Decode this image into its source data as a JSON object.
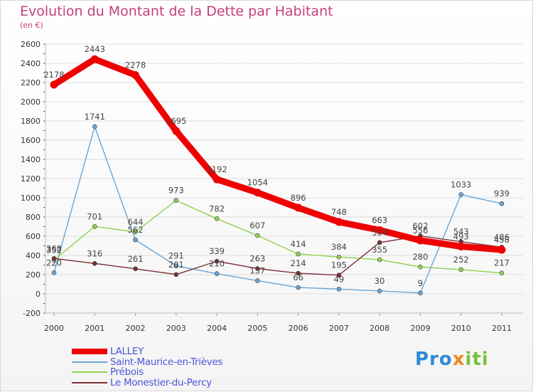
{
  "header": {
    "title": "Evolution du Montant de la Dette par Habitant",
    "subtitle": "(en €)"
  },
  "logo": {
    "p1": "Pro",
    "p2": "x",
    "p3": "iti"
  },
  "chart_data": {
    "type": "line",
    "title": "Evolution du Montant de la Dette par Habitant",
    "ylabel": "(en €)",
    "xlabel": "",
    "categories": [
      "2000",
      "2001",
      "2002",
      "2003",
      "2004",
      "2005",
      "2006",
      "2007",
      "2008",
      "2009",
      "2010",
      "2011"
    ],
    "ylim": [
      -200,
      2600
    ],
    "yticks": [
      -200,
      0,
      200,
      400,
      600,
      800,
      1000,
      1200,
      1400,
      1600,
      1800,
      2000,
      2200,
      2400,
      2600
    ],
    "grid": true,
    "legend": "bottom-left",
    "series": [
      {
        "name": "LALLEY",
        "color": "#ee0000",
        "values": [
          2178,
          2443,
          2278,
          1695,
          1192,
          1054,
          896,
          748,
          663,
          556,
          493,
          458
        ]
      },
      {
        "name": "Saint-Maurice-en-Trièves",
        "color": "#6aa6d8",
        "values": [
          220,
          1741,
          562,
          291,
          210,
          137,
          66,
          49,
          30,
          9,
          1033,
          939
        ]
      },
      {
        "name": "Prébois",
        "color": "#8fd14f",
        "values": [
          352,
          701,
          644,
          973,
          782,
          607,
          414,
          384,
          355,
          280,
          252,
          217
        ]
      },
      {
        "name": "Le Monestier-du-Percy",
        "color": "#7a2e35",
        "values": [
          368,
          316,
          261,
          201,
          339,
          263,
          214,
          195,
          534,
          602,
          543,
          486
        ]
      }
    ]
  }
}
